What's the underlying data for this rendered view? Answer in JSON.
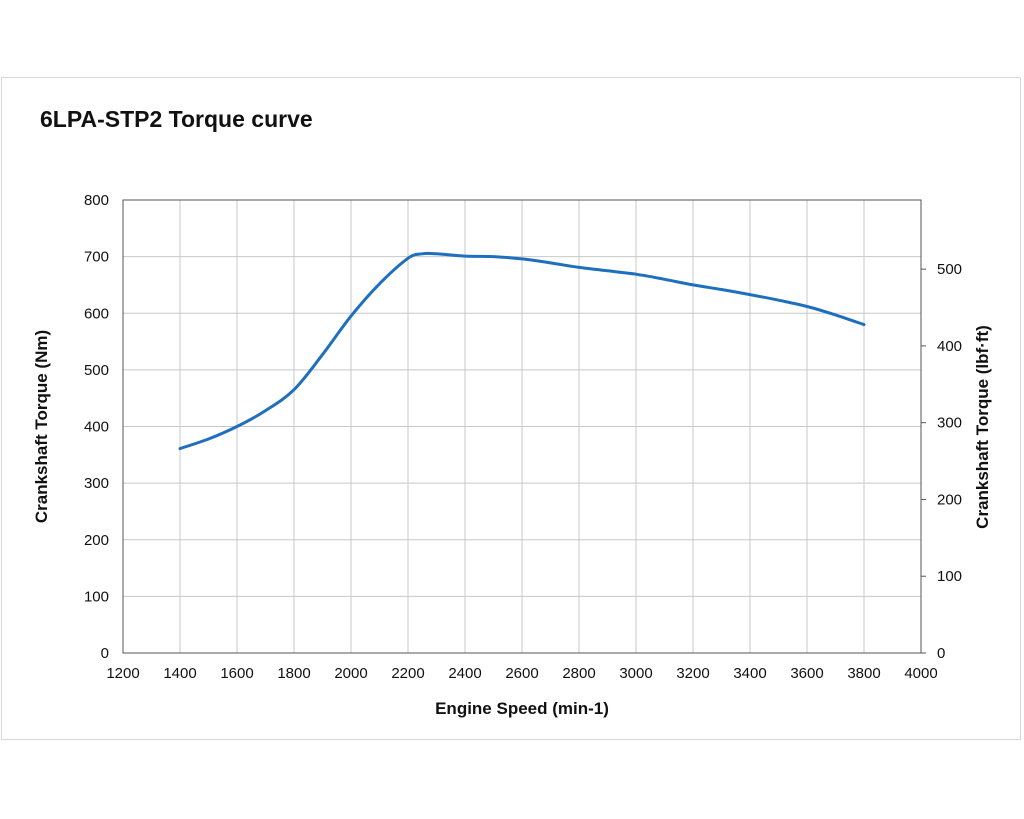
{
  "chart_data": {
    "type": "line",
    "title": "6LPA-STP2 Torque curve",
    "xlabel": "Engine Speed (min-1)",
    "ylabel": "Crankshaft Torque (Nm)",
    "y2label": "Crankshaft Torque (lbf·ft)",
    "xlim": [
      1200,
      4000
    ],
    "ylim": [
      0,
      800
    ],
    "y2lim": [
      0,
      590.05
    ],
    "xticks": [
      1200,
      1400,
      1600,
      1800,
      2000,
      2200,
      2400,
      2600,
      2800,
      3000,
      3200,
      3400,
      3600,
      3800,
      4000
    ],
    "yticks": [
      0,
      100,
      200,
      300,
      400,
      500,
      600,
      700,
      800
    ],
    "y2ticks": [
      0,
      100,
      200,
      300,
      400,
      500
    ],
    "grid": true,
    "line_color": "#1f6fbf",
    "series": [
      {
        "name": "Torque",
        "x": [
          1400,
          1500,
          1600,
          1700,
          1800,
          1900,
          2000,
          2100,
          2200,
          2250,
          2300,
          2400,
          2500,
          2600,
          2700,
          2800,
          2900,
          3000,
          3100,
          3200,
          3300,
          3400,
          3500,
          3600,
          3700,
          3800
        ],
        "values": [
          361,
          378,
          400,
          428,
          465,
          527,
          595,
          652,
          697,
          705,
          705,
          701,
          700,
          696,
          689,
          681,
          675,
          669,
          660,
          650,
          642,
          633,
          623,
          612,
          597,
          580
        ]
      }
    ]
  }
}
